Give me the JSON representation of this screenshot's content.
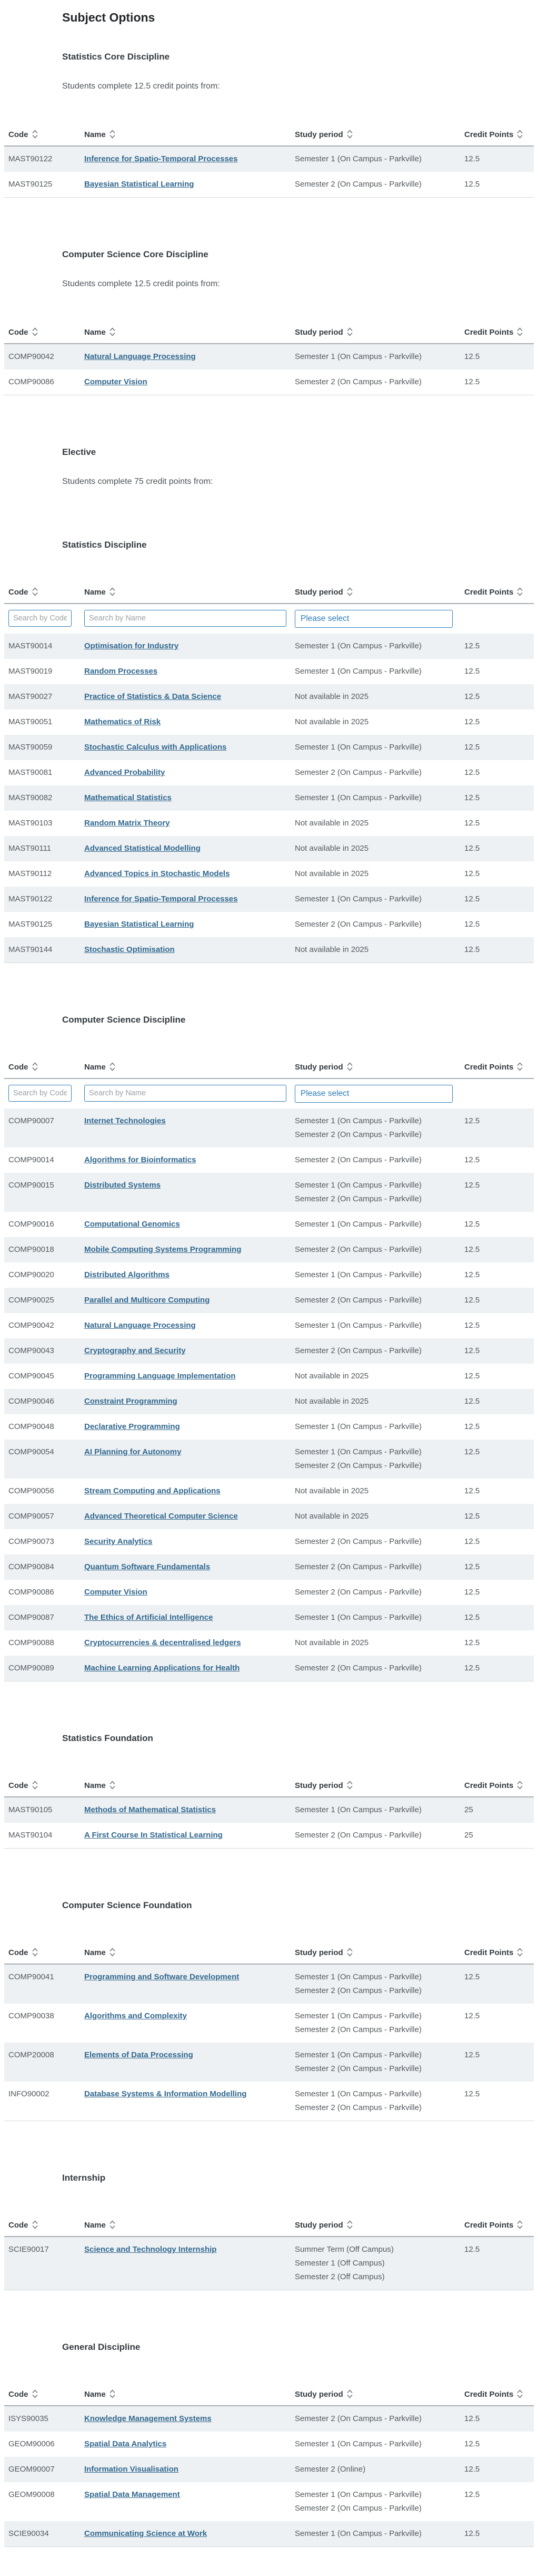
{
  "page": {
    "title": "Subject Options"
  },
  "columns": {
    "code": "Code",
    "name": "Name",
    "study_period": "Study period",
    "credit_points": "Credit Points"
  },
  "filters": {
    "code_placeholder": "Search by Code",
    "name_placeholder": "Search by Name",
    "study_period_placeholder": "Please select"
  },
  "icons": {
    "sort": "up-down-chevrons"
  },
  "colors": {
    "accent_blue": "#2e7eb8",
    "link_blue": "#33688e",
    "shaded_row": "#edf1f4",
    "header_border": "#a9aeb3"
  },
  "sections": [
    {
      "heading": "Statistics Core Discipline",
      "intro": "Students complete 12.5 credit points from:",
      "table": {
        "filters": false,
        "rows": [
          {
            "code": "MAST90122",
            "name": "Inference for Spatio-Temporal Processes",
            "periods": [
              "Semester 1 (On Campus - Parkville)"
            ],
            "credit": "12.5"
          },
          {
            "code": "MAST90125",
            "name": "Bayesian Statistical Learning",
            "periods": [
              "Semester 2 (On Campus - Parkville)"
            ],
            "credit": "12.5"
          }
        ]
      }
    },
    {
      "heading": "Computer Science Core Discipline",
      "intro": "Students complete 12.5 credit points from:",
      "table": {
        "filters": false,
        "rows": [
          {
            "code": "COMP90042",
            "name": "Natural Language Processing",
            "periods": [
              "Semester 1 (On Campus - Parkville)"
            ],
            "credit": "12.5"
          },
          {
            "code": "COMP90086",
            "name": "Computer Vision",
            "periods": [
              "Semester 2 (On Campus - Parkville)"
            ],
            "credit": "12.5"
          }
        ]
      }
    },
    {
      "heading": "Elective",
      "intro": "Students complete 75 credit points from:",
      "table": null
    },
    {
      "heading": "Statistics Discipline",
      "intro": null,
      "table": {
        "filters": true,
        "rows": [
          {
            "code": "MAST90014",
            "name": "Optimisation for Industry",
            "periods": [
              "Semester 1 (On Campus - Parkville)"
            ],
            "credit": "12.5"
          },
          {
            "code": "MAST90019",
            "name": "Random Processes",
            "periods": [
              "Semester 1 (On Campus - Parkville)"
            ],
            "credit": "12.5"
          },
          {
            "code": "MAST90027",
            "name": "Practice of Statistics & Data Science",
            "periods": [
              "Not available in 2025"
            ],
            "credit": "12.5"
          },
          {
            "code": "MAST90051",
            "name": "Mathematics of Risk",
            "periods": [
              "Not available in 2025"
            ],
            "credit": "12.5"
          },
          {
            "code": "MAST90059",
            "name": "Stochastic Calculus with Applications",
            "periods": [
              "Semester 1 (On Campus - Parkville)"
            ],
            "credit": "12.5"
          },
          {
            "code": "MAST90081",
            "name": "Advanced Probability",
            "periods": [
              "Semester 2 (On Campus - Parkville)"
            ],
            "credit": "12.5"
          },
          {
            "code": "MAST90082",
            "name": "Mathematical Statistics",
            "periods": [
              "Semester 1 (On Campus - Parkville)"
            ],
            "credit": "12.5"
          },
          {
            "code": "MAST90103",
            "name": "Random Matrix Theory",
            "periods": [
              "Not available in 2025"
            ],
            "credit": "12.5"
          },
          {
            "code": "MAST90111",
            "name": "Advanced Statistical Modelling",
            "periods": [
              "Not available in 2025"
            ],
            "credit": "12.5"
          },
          {
            "code": "MAST90112",
            "name": "Advanced Topics in Stochastic Models",
            "periods": [
              "Not available in 2025"
            ],
            "credit": "12.5"
          },
          {
            "code": "MAST90122",
            "name": "Inference for Spatio-Temporal Processes",
            "periods": [
              "Semester 1 (On Campus - Parkville)"
            ],
            "credit": "12.5"
          },
          {
            "code": "MAST90125",
            "name": "Bayesian Statistical Learning",
            "periods": [
              "Semester 2 (On Campus - Parkville)"
            ],
            "credit": "12.5"
          },
          {
            "code": "MAST90144",
            "name": "Stochastic Optimisation",
            "periods": [
              "Not available in 2025"
            ],
            "credit": "12.5"
          }
        ]
      }
    },
    {
      "heading": "Computer Science Discipline",
      "intro": null,
      "table": {
        "filters": true,
        "rows": [
          {
            "code": "COMP90007",
            "name": "Internet Technologies",
            "periods": [
              "Semester 1 (On Campus - Parkville)",
              "Semester 2 (On Campus - Parkville)"
            ],
            "credit": "12.5"
          },
          {
            "code": "COMP90014",
            "name": "Algorithms for Bioinformatics",
            "periods": [
              "Semester 2 (On Campus - Parkville)"
            ],
            "credit": "12.5"
          },
          {
            "code": "COMP90015",
            "name": "Distributed Systems",
            "periods": [
              "Semester 1 (On Campus - Parkville)",
              "Semester 2 (On Campus - Parkville)"
            ],
            "credit": "12.5"
          },
          {
            "code": "COMP90016",
            "name": "Computational Genomics",
            "periods": [
              "Semester 1 (On Campus - Parkville)"
            ],
            "credit": "12.5"
          },
          {
            "code": "COMP90018",
            "name": "Mobile Computing Systems Programming",
            "periods": [
              "Semester 2 (On Campus - Parkville)"
            ],
            "credit": "12.5"
          },
          {
            "code": "COMP90020",
            "name": "Distributed Algorithms",
            "periods": [
              "Semester 1 (On Campus - Parkville)"
            ],
            "credit": "12.5"
          },
          {
            "code": "COMP90025",
            "name": "Parallel and Multicore Computing",
            "periods": [
              "Semester 2 (On Campus - Parkville)"
            ],
            "credit": "12.5"
          },
          {
            "code": "COMP90042",
            "name": "Natural Language Processing",
            "periods": [
              "Semester 1 (On Campus - Parkville)"
            ],
            "credit": "12.5"
          },
          {
            "code": "COMP90043",
            "name": "Cryptography and Security",
            "periods": [
              "Semester 2 (On Campus - Parkville)"
            ],
            "credit": "12.5"
          },
          {
            "code": "COMP90045",
            "name": "Programming Language Implementation",
            "periods": [
              "Not available in 2025"
            ],
            "credit": "12.5"
          },
          {
            "code": "COMP90046",
            "name": "Constraint Programming",
            "periods": [
              "Not available in 2025"
            ],
            "credit": "12.5"
          },
          {
            "code": "COMP90048",
            "name": "Declarative Programming",
            "periods": [
              "Semester 1 (On Campus - Parkville)"
            ],
            "credit": "12.5"
          },
          {
            "code": "COMP90054",
            "name": "AI Planning for Autonomy",
            "periods": [
              "Semester 1 (On Campus - Parkville)",
              "Semester 2 (On Campus - Parkville)"
            ],
            "credit": "12.5"
          },
          {
            "code": "COMP90056",
            "name": "Stream Computing and Applications",
            "periods": [
              "Not available in 2025"
            ],
            "credit": "12.5"
          },
          {
            "code": "COMP90057",
            "name": "Advanced Theoretical Computer Science",
            "periods": [
              "Not available in 2025"
            ],
            "credit": "12.5"
          },
          {
            "code": "COMP90073",
            "name": "Security Analytics",
            "periods": [
              "Semester 2 (On Campus - Parkville)"
            ],
            "credit": "12.5"
          },
          {
            "code": "COMP90084",
            "name": "Quantum Software Fundamentals",
            "periods": [
              "Semester 2 (On Campus - Parkville)"
            ],
            "credit": "12.5"
          },
          {
            "code": "COMP90086",
            "name": "Computer Vision",
            "periods": [
              "Semester 2 (On Campus - Parkville)"
            ],
            "credit": "12.5"
          },
          {
            "code": "COMP90087",
            "name": "The Ethics of Artificial Intelligence",
            "periods": [
              "Semester 1 (On Campus - Parkville)"
            ],
            "credit": "12.5"
          },
          {
            "code": "COMP90088",
            "name": "Cryptocurrencies & decentralised ledgers",
            "periods": [
              "Not available in 2025"
            ],
            "credit": "12.5"
          },
          {
            "code": "COMP90089",
            "name": "Machine Learning Applications for Health",
            "periods": [
              "Semester 2 (On Campus - Parkville)"
            ],
            "credit": "12.5"
          }
        ]
      }
    },
    {
      "heading": "Statistics Foundation",
      "intro": null,
      "table": {
        "filters": false,
        "rows": [
          {
            "code": "MAST90105",
            "name": "Methods of Mathematical Statistics",
            "periods": [
              "Semester 1 (On Campus - Parkville)"
            ],
            "credit": "25"
          },
          {
            "code": "MAST90104",
            "name": "A First Course In Statistical Learning",
            "periods": [
              "Semester 2 (On Campus - Parkville)"
            ],
            "credit": "25"
          }
        ]
      }
    },
    {
      "heading": "Computer Science Foundation",
      "intro": null,
      "table": {
        "filters": false,
        "rows": [
          {
            "code": "COMP90041",
            "name": "Programming and Software Development",
            "periods": [
              "Semester 1 (On Campus - Parkville)",
              "Semester 2 (On Campus - Parkville)"
            ],
            "credit": "12.5"
          },
          {
            "code": "COMP90038",
            "name": "Algorithms and Complexity",
            "periods": [
              "Semester 1 (On Campus - Parkville)",
              "Semester 2 (On Campus - Parkville)"
            ],
            "credit": "12.5"
          },
          {
            "code": "COMP20008",
            "name": "Elements of Data Processing",
            "periods": [
              "Semester 1 (On Campus - Parkville)",
              "Semester 2 (On Campus - Parkville)"
            ],
            "credit": "12.5"
          },
          {
            "code": "INFO90002",
            "name": "Database Systems & Information Modelling",
            "periods": [
              "Semester 1 (On Campus - Parkville)",
              "Semester 2 (On Campus - Parkville)"
            ],
            "credit": "12.5"
          }
        ]
      }
    },
    {
      "heading": "Internship",
      "intro": null,
      "table": {
        "filters": false,
        "rows": [
          {
            "code": "SCIE90017",
            "name": "Science and Technology Internship",
            "periods": [
              "Summer Term (Off Campus)",
              "Semester 1 (Off Campus)",
              "Semester 2 (Off Campus)"
            ],
            "credit": "12.5"
          }
        ]
      }
    },
    {
      "heading": "General Discipline",
      "intro": null,
      "table": {
        "filters": false,
        "rows": [
          {
            "code": "ISYS90035",
            "name": "Knowledge Management Systems",
            "periods": [
              "Semester 2 (On Campus - Parkville)"
            ],
            "credit": "12.5"
          },
          {
            "code": "GEOM90006",
            "name": "Spatial Data Analytics",
            "periods": [
              "Semester 1 (On Campus - Parkville)"
            ],
            "credit": "12.5"
          },
          {
            "code": "GEOM90007",
            "name": "Information Visualisation",
            "periods": [
              "Semester 2 (Online)"
            ],
            "credit": "12.5"
          },
          {
            "code": "GEOM90008",
            "name": "Spatial Data Management",
            "periods": [
              "Semester 1 (On Campus - Parkville)",
              "Semester 2 (On Campus - Parkville)"
            ],
            "credit": "12.5"
          },
          {
            "code": "SCIE90034",
            "name": "Communicating Science at Work",
            "periods": [
              "Semester 1 (On Campus - Parkville)"
            ],
            "credit": "12.5"
          }
        ]
      }
    }
  ]
}
